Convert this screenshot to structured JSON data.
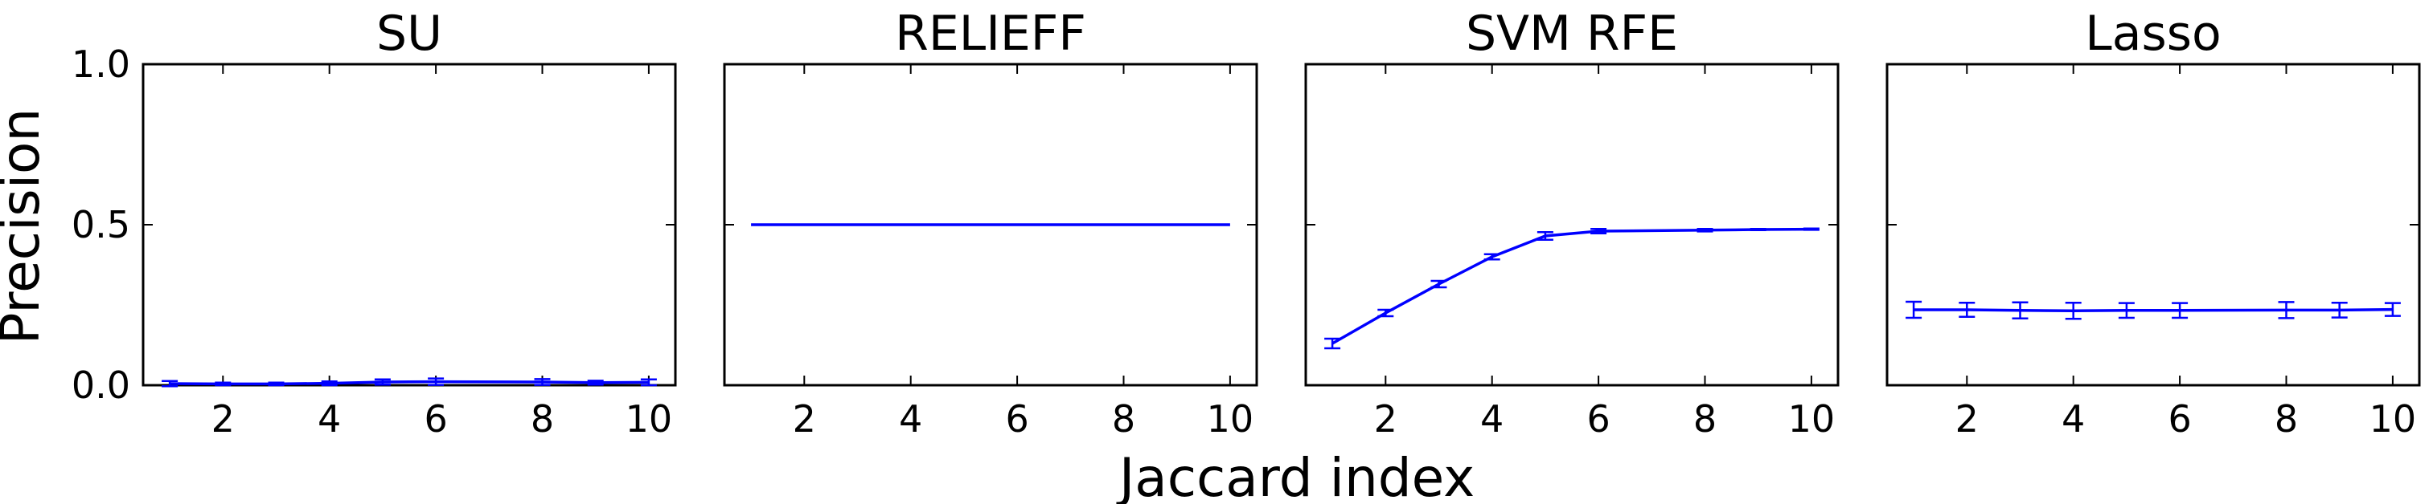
{
  "figure": {
    "xlabel": "Jaccard index",
    "ylabel": "Precision"
  },
  "chart_data": [
    {
      "type": "line",
      "title": "SU",
      "xlim": [
        0.5,
        10.5
      ],
      "ylim": [
        0,
        1
      ],
      "xticks": [
        2,
        4,
        6,
        8,
        10
      ],
      "yticks": [
        0.0,
        0.5,
        1.0
      ],
      "ytick_labels": [
        "0.0",
        "0.5",
        "1.0"
      ],
      "color": "#0000ff",
      "series": [
        {
          "x": [
            1,
            2,
            3,
            4,
            5,
            6,
            8,
            9,
            10
          ],
          "y": [
            0.005,
            0.004,
            0.004,
            0.006,
            0.01,
            0.011,
            0.01,
            0.008,
            0.009
          ],
          "err": [
            0.008,
            0.004,
            0.004,
            0.006,
            0.008,
            0.01,
            0.009,
            0.006,
            0.009
          ]
        }
      ]
    },
    {
      "type": "line",
      "title": "RELIEFF",
      "xlim": [
        0.5,
        10.5
      ],
      "ylim": [
        0,
        1
      ],
      "xticks": [
        2,
        4,
        6,
        8,
        10
      ],
      "yticks": [
        0.0,
        0.5,
        1.0
      ],
      "ytick_labels": [],
      "color": "#0000ff",
      "series": [
        {
          "x": [
            1,
            2,
            3,
            4,
            5,
            6,
            8,
            9,
            10
          ],
          "y": [
            0.5,
            0.5,
            0.5,
            0.5,
            0.5,
            0.5,
            0.5,
            0.5,
            0.5
          ],
          "err": [
            0,
            0,
            0,
            0,
            0,
            0,
            0,
            0,
            0
          ]
        }
      ]
    },
    {
      "type": "line",
      "title": "SVM RFE",
      "xlim": [
        0.5,
        10.5
      ],
      "ylim": [
        0,
        1
      ],
      "xticks": [
        2,
        4,
        6,
        8,
        10
      ],
      "yticks": [
        0.0,
        0.5,
        1.0
      ],
      "ytick_labels": [],
      "color": "#0000ff",
      "series": [
        {
          "x": [
            1,
            2,
            3,
            4,
            5,
            6,
            8,
            9,
            10
          ],
          "y": [
            0.13,
            0.225,
            0.315,
            0.4,
            0.465,
            0.48,
            0.483,
            0.485,
            0.486
          ],
          "err": [
            0.015,
            0.01,
            0.01,
            0.008,
            0.012,
            0.007,
            0.004,
            0.002,
            0.002
          ]
        }
      ]
    },
    {
      "type": "line",
      "title": "Lasso",
      "xlim": [
        0.5,
        10.5
      ],
      "ylim": [
        0,
        1
      ],
      "xticks": [
        2,
        4,
        6,
        8,
        10
      ],
      "yticks": [
        0.0,
        0.5,
        1.0
      ],
      "ytick_labels": [],
      "color": "#0000ff",
      "series": [
        {
          "x": [
            1,
            2,
            3,
            4,
            5,
            6,
            8,
            9,
            10
          ],
          "y": [
            0.235,
            0.235,
            0.233,
            0.232,
            0.233,
            0.233,
            0.234,
            0.234,
            0.236
          ],
          "err": [
            0.025,
            0.022,
            0.025,
            0.025,
            0.023,
            0.023,
            0.025,
            0.023,
            0.02
          ]
        }
      ]
    }
  ]
}
